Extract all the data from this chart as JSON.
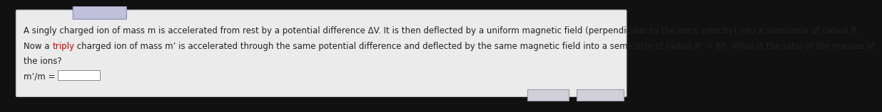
{
  "bg_color": "#111111",
  "card_bg": "#ebebeb",
  "card_border": "#bbbbbb",
  "line1": "A singly charged ion of mass m is accelerated from rest by a potential difference ΔV. It is then deflected by a uniform magnetic field (perpendicular to the ion’s velocity) into a semicircle of radius R.",
  "line2_before_triply": "Now a ",
  "line2_triply": "triply",
  "line2_after_triply": " charged ion of mass m’ is accelerated through the same potential difference and deflected by the same magnetic field into a semicircle of radius R’ = 6R. What is the ratio of the masses of",
  "line3": "the ions?",
  "line4_prefix": "m’/m = ",
  "triply_color": "#cc0000",
  "text_color": "#222222",
  "font_size": 8.5,
  "top_box_color": "#aaaacc",
  "top_box_border": "#7777aa"
}
